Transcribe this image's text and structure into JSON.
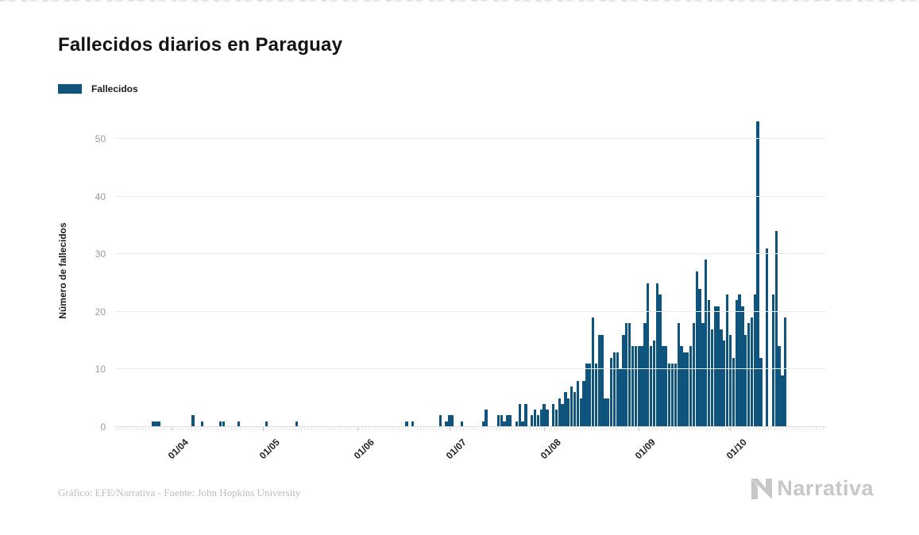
{
  "title": "Fallecidos diarios en Paraguay",
  "legend": {
    "label": "Fallecidos",
    "color": "#0F547C"
  },
  "y_axis": {
    "label": "Número de fallecidos",
    "ticks": [
      0,
      10,
      20,
      30,
      40,
      50
    ]
  },
  "footer": {
    "credit": "Gráfico: EFE/Narrativa - Fuente: John Hopkins University"
  },
  "logo": {
    "text": "Narrativa",
    "icon": "narrativa-n-icon",
    "color": "#c7c7c7"
  },
  "chart_data": {
    "type": "bar",
    "title": "Fallecidos diarios en Paraguay",
    "series_name": "Fallecidos",
    "bar_color": "#0F547C",
    "ylabel": "Número de fallecidos",
    "ylim": [
      0,
      55
    ],
    "y_ticks": [
      0,
      10,
      20,
      30,
      40,
      50
    ],
    "grid": "horizontal",
    "legend_position": "top-left",
    "start_date": "14/03/2020",
    "end_date": "01/11/2020",
    "x_tick_labels": [
      "01/04",
      "01/05",
      "01/06",
      "01/07",
      "01/08",
      "01/09",
      "01/10"
    ],
    "x_tick_day_indices": [
      18,
      48,
      79,
      109,
      140,
      171,
      201
    ],
    "peak_value": 53,
    "values": [
      0,
      0,
      0,
      0,
      0,
      0,
      0,
      0,
      0,
      0,
      0,
      0,
      1,
      1,
      1,
      0,
      0,
      0,
      0,
      0,
      0,
      0,
      0,
      0,
      0,
      2,
      0,
      0,
      1,
      0,
      0,
      0,
      0,
      0,
      1,
      1,
      0,
      0,
      0,
      0,
      1,
      0,
      0,
      0,
      0,
      0,
      0,
      0,
      0,
      1,
      0,
      0,
      0,
      0,
      0,
      0,
      0,
      0,
      0,
      1,
      0,
      0,
      0,
      0,
      0,
      0,
      0,
      0,
      0,
      0,
      0,
      0,
      0,
      0,
      0,
      0,
      0,
      0,
      0,
      0,
      0,
      0,
      0,
      0,
      0,
      0,
      0,
      0,
      0,
      0,
      0,
      0,
      0,
      0,
      0,
      1,
      0,
      1,
      0,
      0,
      0,
      0,
      0,
      0,
      0,
      0,
      2,
      0,
      1,
      2,
      2,
      0,
      0,
      1,
      0,
      0,
      0,
      0,
      0,
      0,
      1,
      3,
      0,
      0,
      0,
      2,
      2,
      1,
      2,
      2,
      0,
      1,
      4,
      1,
      4,
      0,
      2,
      3,
      2,
      3,
      4,
      3,
      0,
      4,
      3,
      5,
      4,
      6,
      5,
      7,
      6,
      8,
      5,
      8,
      11,
      11,
      19,
      11,
      16,
      16,
      5,
      5,
      12,
      13,
      13,
      10,
      16,
      18,
      18,
      14,
      14,
      14,
      14,
      18,
      25,
      14,
      15,
      25,
      23,
      14,
      14,
      11,
      11,
      11,
      18,
      14,
      13,
      13,
      14,
      18,
      27,
      24,
      18,
      29,
      22,
      17,
      21,
      21,
      17,
      15,
      23,
      16,
      12,
      22,
      23,
      21,
      16,
      18,
      19,
      23,
      53,
      12,
      0,
      31,
      0,
      23,
      34,
      14,
      9,
      19,
      0,
      0,
      0,
      0,
      0,
      0,
      0,
      0,
      0,
      0,
      0,
      0,
      0
    ]
  }
}
